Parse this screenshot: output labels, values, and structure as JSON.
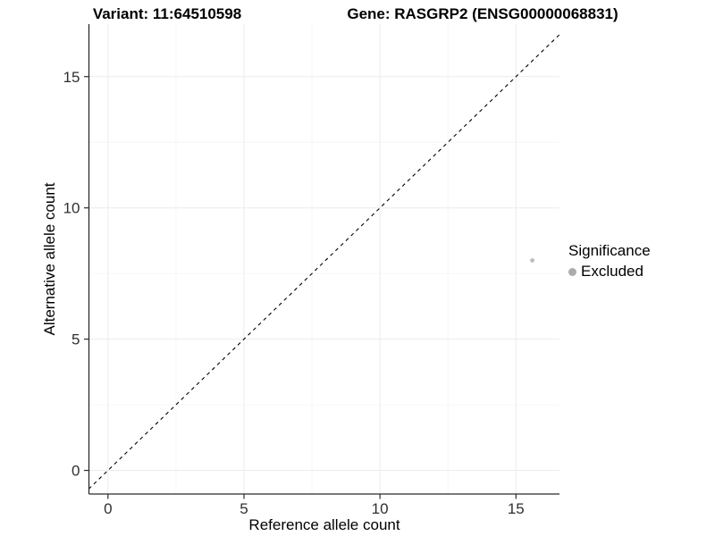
{
  "figure": {
    "title_left": "Variant: 11:64510598",
    "title_right": "Gene: RASGRP2 (ENSG00000068831)"
  },
  "chart_data": {
    "type": "scatter",
    "title": "Variant: 11:64510598   Gene: RASGRP2 (ENSG00000068831)",
    "xlabel": "Reference allele count",
    "ylabel": "Alternative allele count",
    "x_ticks": [
      0,
      5,
      10,
      15
    ],
    "y_ticks": [
      0,
      5,
      10,
      15
    ],
    "xlim": [
      -0.7,
      16.6
    ],
    "ylim": [
      -0.9,
      17.0
    ],
    "grid": "major and minor, very light gray, white background",
    "identity_line": {
      "style": "dashed",
      "color": "#000000",
      "from": [
        -0.9,
        -0.9
      ],
      "to": [
        17.0,
        17.0
      ]
    },
    "series": [
      {
        "name": "Excluded",
        "color": "#bcbcbc",
        "points": [
          {
            "x": 15.6,
            "y": 8
          }
        ]
      }
    ],
    "legend": {
      "position": "right",
      "title": "Significance",
      "entries": [
        {
          "label": "Excluded",
          "color": "#ababab",
          "shape": "circle"
        }
      ]
    },
    "colors": {
      "axis_line": "#2b2b2b",
      "tick_label": "#303030",
      "grid_major": "#ebebeb",
      "grid_minor": "#f6f6f6"
    }
  }
}
